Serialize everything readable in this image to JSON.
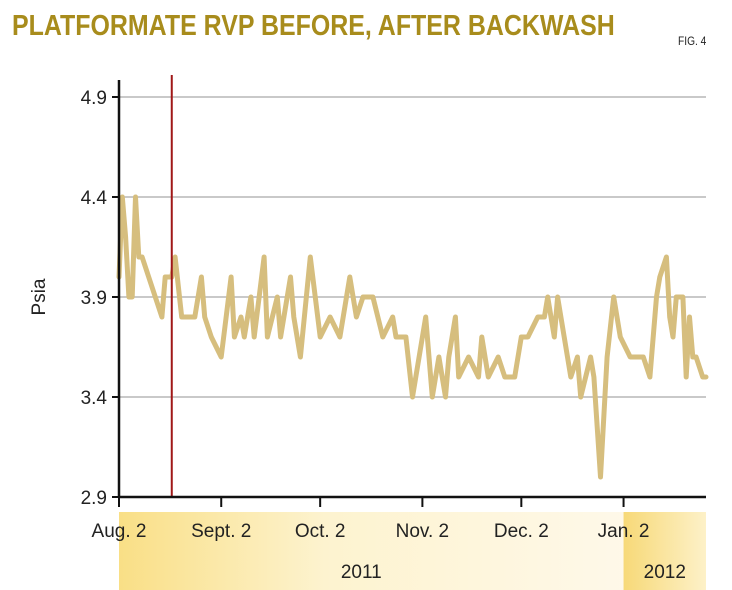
{
  "title": "PLATFORMATE RVP BEFORE, AFTER BACKWASH",
  "figure_label": "FIG. 4",
  "colors": {
    "title": "#a88c1c",
    "series": "#d6be7e",
    "marker_line": "#a01818",
    "band": "#fbe9a6"
  },
  "chart_data": {
    "type": "line",
    "ylabel": "Psia",
    "ylim": [
      2.9,
      5.0
    ],
    "yticks": [
      "4.9",
      "4.4",
      "3.9",
      "3.4",
      "2.9"
    ],
    "xlim": [
      "2011-08-02",
      "2012-01-27"
    ],
    "xticks": [
      {
        "date": "2011-08-02",
        "label": "Aug. 2"
      },
      {
        "date": "2011-09-02",
        "label": "Sept. 2"
      },
      {
        "date": "2011-10-02",
        "label": "Oct. 2"
      },
      {
        "date": "2011-11-02",
        "label": "Nov. 2"
      },
      {
        "date": "2011-12-02",
        "label": "Dec. 2"
      },
      {
        "date": "2012-01-02",
        "label": "Jan. 2"
      }
    ],
    "years": [
      {
        "label": "2011",
        "start": "2011-08-02"
      },
      {
        "label": "2012",
        "start": "2012-01-02"
      }
    ],
    "grid": true,
    "vertical_marker": "2011-08-18",
    "series": [
      {
        "points": [
          [
            "2011-08-02",
            4.0
          ],
          [
            "2011-08-03",
            4.4
          ],
          [
            "2011-08-04",
            4.2
          ],
          [
            "2011-08-05",
            3.9
          ],
          [
            "2011-08-06",
            3.9
          ],
          [
            "2011-08-07",
            4.4
          ],
          [
            "2011-08-08",
            4.1
          ],
          [
            "2011-08-09",
            4.1
          ],
          [
            "2011-08-11",
            4.0
          ],
          [
            "2011-08-15",
            3.8
          ],
          [
            "2011-08-16",
            4.0
          ],
          [
            "2011-08-18",
            4.0
          ],
          [
            "2011-08-19",
            4.1
          ],
          [
            "2011-08-21",
            3.8
          ],
          [
            "2011-08-25",
            3.8
          ],
          [
            "2011-08-27",
            4.0
          ],
          [
            "2011-08-28",
            3.8
          ],
          [
            "2011-08-30",
            3.7
          ],
          [
            "2011-09-02",
            3.6
          ],
          [
            "2011-09-05",
            4.0
          ],
          [
            "2011-09-06",
            3.7
          ],
          [
            "2011-09-08",
            3.8
          ],
          [
            "2011-09-09",
            3.7
          ],
          [
            "2011-09-11",
            3.9
          ],
          [
            "2011-09-12",
            3.7
          ],
          [
            "2011-09-15",
            4.1
          ],
          [
            "2011-09-16",
            3.7
          ],
          [
            "2011-09-19",
            3.9
          ],
          [
            "2011-09-20",
            3.7
          ],
          [
            "2011-09-23",
            4.0
          ],
          [
            "2011-09-24",
            3.8
          ],
          [
            "2011-09-26",
            3.6
          ],
          [
            "2011-09-29",
            4.1
          ],
          [
            "2011-10-02",
            3.7
          ],
          [
            "2011-10-05",
            3.8
          ],
          [
            "2011-10-08",
            3.7
          ],
          [
            "2011-10-11",
            4.0
          ],
          [
            "2011-10-13",
            3.8
          ],
          [
            "2011-10-15",
            3.9
          ],
          [
            "2011-10-18",
            3.9
          ],
          [
            "2011-10-21",
            3.7
          ],
          [
            "2011-10-24",
            3.8
          ],
          [
            "2011-10-25",
            3.7
          ],
          [
            "2011-10-28",
            3.7
          ],
          [
            "2011-10-30",
            3.4
          ],
          [
            "2011-11-01",
            3.6
          ],
          [
            "2011-11-03",
            3.8
          ],
          [
            "2011-11-05",
            3.4
          ],
          [
            "2011-11-07",
            3.6
          ],
          [
            "2011-11-09",
            3.4
          ],
          [
            "2011-11-10",
            3.6
          ],
          [
            "2011-11-12",
            3.8
          ],
          [
            "2011-11-13",
            3.5
          ],
          [
            "2011-11-16",
            3.6
          ],
          [
            "2011-11-19",
            3.5
          ],
          [
            "2011-11-20",
            3.7
          ],
          [
            "2011-11-22",
            3.5
          ],
          [
            "2011-11-25",
            3.6
          ],
          [
            "2011-11-27",
            3.5
          ],
          [
            "2011-11-30",
            3.5
          ],
          [
            "2011-12-02",
            3.7
          ],
          [
            "2011-12-04",
            3.7
          ],
          [
            "2011-12-07",
            3.8
          ],
          [
            "2011-12-09",
            3.8
          ],
          [
            "2011-12-10",
            3.9
          ],
          [
            "2011-12-12",
            3.7
          ],
          [
            "2011-12-13",
            3.9
          ],
          [
            "2011-12-15",
            3.7
          ],
          [
            "2011-12-17",
            3.5
          ],
          [
            "2011-12-19",
            3.6
          ],
          [
            "2011-12-20",
            3.4
          ],
          [
            "2011-12-23",
            3.6
          ],
          [
            "2011-12-24",
            3.5
          ],
          [
            "2011-12-26",
            3.0
          ],
          [
            "2011-12-28",
            3.6
          ],
          [
            "2011-12-30",
            3.9
          ],
          [
            "2012-01-01",
            3.7
          ],
          [
            "2012-01-04",
            3.6
          ],
          [
            "2012-01-08",
            3.6
          ],
          [
            "2012-01-10",
            3.5
          ],
          [
            "2012-01-12",
            3.9
          ],
          [
            "2012-01-13",
            4.0
          ],
          [
            "2012-01-15",
            4.1
          ],
          [
            "2012-01-16",
            3.8
          ],
          [
            "2012-01-17",
            3.7
          ],
          [
            "2012-01-18",
            3.9
          ],
          [
            "2012-01-20",
            3.9
          ],
          [
            "2012-01-21",
            3.5
          ],
          [
            "2012-01-22",
            3.8
          ],
          [
            "2012-01-23",
            3.6
          ],
          [
            "2012-01-24",
            3.6
          ],
          [
            "2012-01-26",
            3.5
          ],
          [
            "2012-01-27",
            3.5
          ]
        ]
      }
    ]
  }
}
